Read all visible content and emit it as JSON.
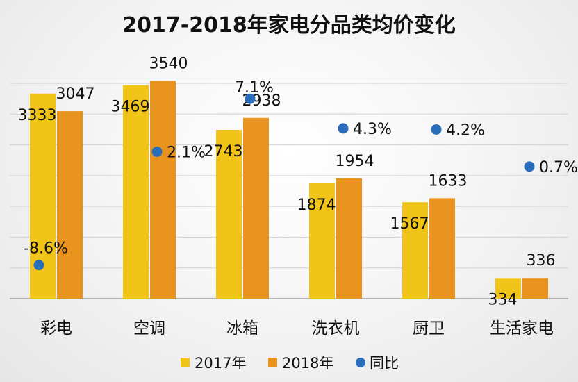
{
  "chart_data": {
    "type": "bar",
    "title": "2017-2018年家电分品类均价变化",
    "categories": [
      "彩电",
      "空调",
      "冰箱",
      "洗衣机",
      "厨卫",
      "生活家电"
    ],
    "series": [
      {
        "name": "2017年",
        "values": [
          3333,
          3469,
          2743,
          1874,
          1567,
          334
        ],
        "color": "#F0C419"
      },
      {
        "name": "2018年",
        "values": [
          3047,
          3540,
          2938,
          1954,
          1633,
          336
        ],
        "color": "#E8931E"
      }
    ],
    "yoy": {
      "name": "同比",
      "values": [
        -8.6,
        2.1,
        7.1,
        4.3,
        4.2,
        0.7
      ],
      "labels": [
        "-8.6%",
        "2.1%",
        "7.1%",
        "4.3%",
        "4.2%",
        "0.7%"
      ],
      "color": "#2A6EBB"
    },
    "ylim": [
      0,
      3500
    ],
    "yoy_range": [
      -10,
      10
    ],
    "grid": true,
    "legend": "bottom"
  }
}
